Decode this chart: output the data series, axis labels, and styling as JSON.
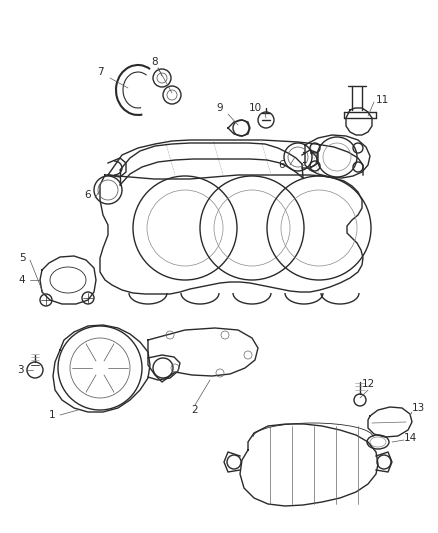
{
  "background_color": "#ffffff",
  "line_color": "#2a2a2a",
  "label_color": "#2a2a2a",
  "font_size": 7.5,
  "fig_w": 4.38,
  "fig_h": 5.33,
  "dpi": 100
}
